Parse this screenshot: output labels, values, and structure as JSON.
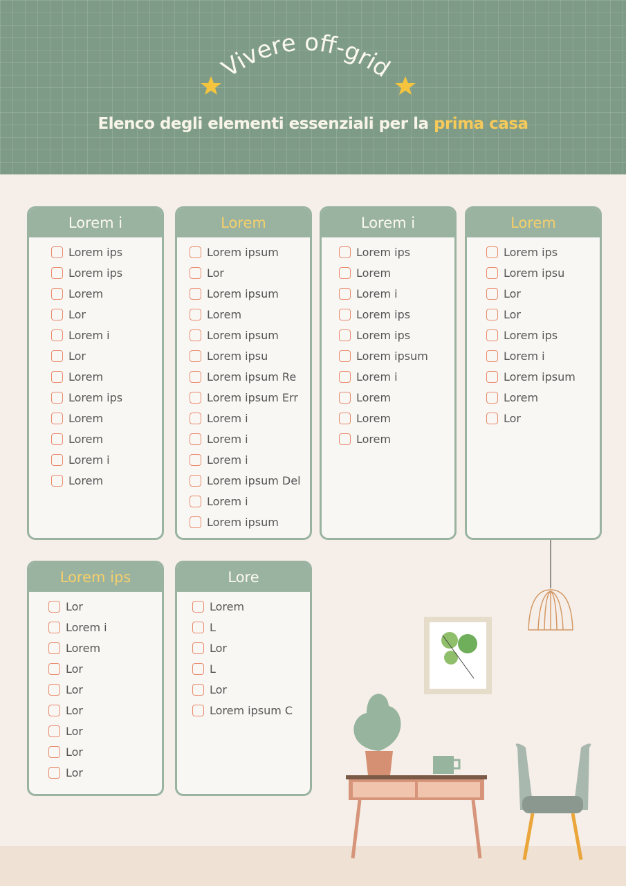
{
  "header": {
    "title": "Vivere off-grid",
    "subtitle_prefix": "Elenco degli elementi essenziali per la ",
    "subtitle_highlight": "prima casa"
  },
  "colors": {
    "header_bg": "#7d9b86",
    "card": "#9ab3a1",
    "checkbox": "#e98a6c",
    "accent": "#f5c95a",
    "page": "#f6efe9"
  },
  "cards": [
    {
      "title": "Lorem i",
      "highlight": false,
      "items": [
        "Lorem ips",
        "Lorem ips",
        "Lorem",
        "Lor",
        "Lorem i",
        "Lor",
        "Lorem",
        "Lorem ips",
        "Lorem",
        "Lorem",
        "Lorem i",
        "Lorem"
      ]
    },
    {
      "title": "Lorem",
      "highlight": true,
      "items": [
        "Lorem ipsum",
        "Lor",
        "Lorem ipsum",
        "Lorem",
        "Lorem ipsum",
        "Lorem ipsu",
        "Lorem ipsum Re",
        "Lorem ipsum Err",
        "Lorem i",
        "Lorem i",
        "Lorem i",
        "Lorem ipsum Del",
        "Lorem i",
        "Lorem ipsum"
      ]
    },
    {
      "title": "Lorem i",
      "highlight": false,
      "items": [
        "Lorem ips",
        "Lorem",
        "Lorem i",
        "Lorem ips",
        "Lorem ips",
        "Lorem ipsum",
        "Lorem i",
        "Lorem",
        "Lorem",
        "Lorem"
      ]
    },
    {
      "title": "Lorem",
      "highlight": true,
      "items": [
        "Lorem ips",
        "Lorem ipsu",
        "Lor",
        "Lor",
        "Lorem ips",
        "Lorem i",
        "Lorem ipsum",
        "Lorem",
        "Lor"
      ]
    },
    {
      "title": "Lorem ips",
      "highlight": true,
      "items": [
        "Lor",
        "Lorem i",
        "Lorem",
        "Lor",
        "Lor",
        "Lor",
        "Lor",
        "Lor",
        "Lor"
      ]
    },
    {
      "title": "Lore",
      "highlight": false,
      "items": [
        "Lorem",
        "L",
        "Lor",
        "L",
        "Lor",
        "Lorem ipsum C"
      ]
    }
  ]
}
